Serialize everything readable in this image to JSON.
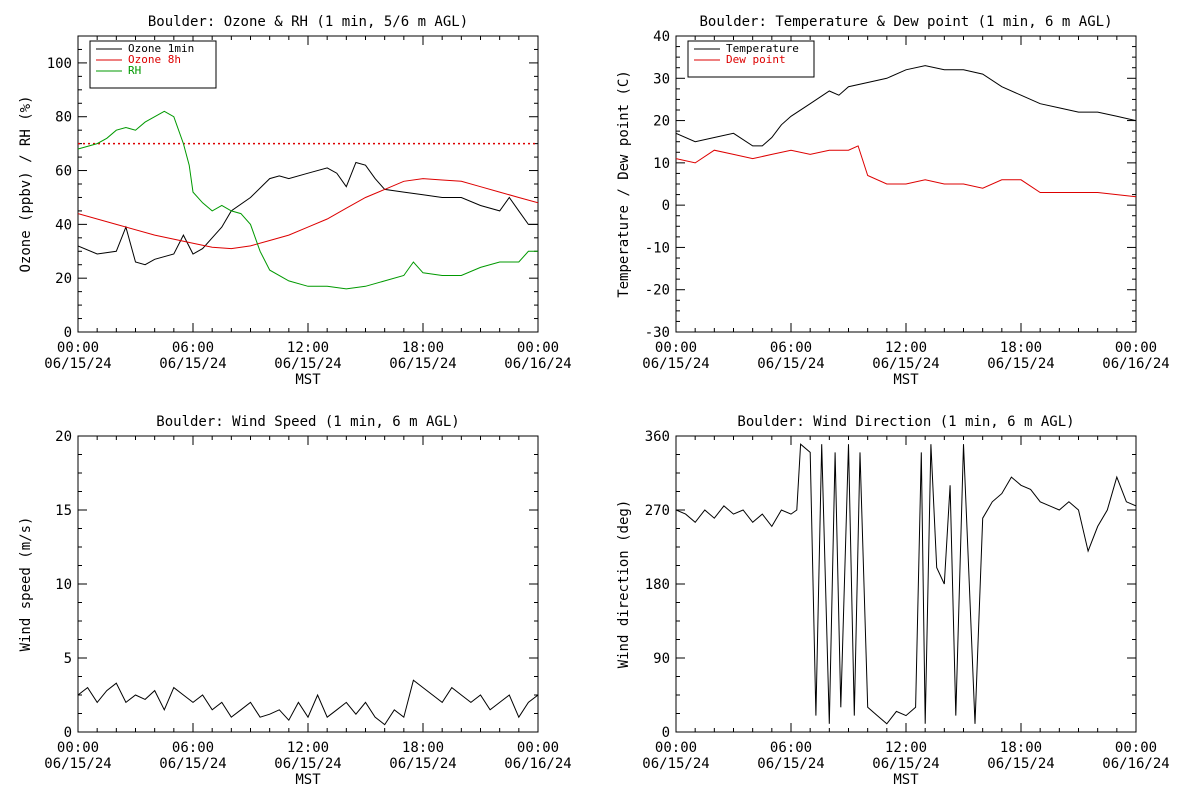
{
  "chart_data": [
    {
      "type": "line",
      "title": "Boulder: Ozone & RH (1 min, 5/6 m AGL)",
      "xlabel": "MST",
      "ylabel": "Ozone (ppbv) / RH (%)",
      "ylim": [
        0,
        110
      ],
      "xlim": [
        0,
        24
      ],
      "yticks": [
        0,
        20,
        40,
        60,
        80,
        100
      ],
      "xtick_labels": [
        [
          "00:00",
          "06/15/24"
        ],
        [
          "06:00",
          "06/15/24"
        ],
        [
          "12:00",
          "06/15/24"
        ],
        [
          "18:00",
          "06/15/24"
        ],
        [
          "00:00",
          "06/16/24"
        ]
      ],
      "legend_position": "top-left",
      "reference_line": {
        "y": 70,
        "color": "#dd0000",
        "style": "dotted"
      },
      "series": [
        {
          "name": "Ozone 1min",
          "color": "#000000",
          "x": [
            0,
            1,
            2,
            2.5,
            3,
            3.5,
            4,
            5,
            5.5,
            6,
            6.5,
            7,
            7.5,
            8,
            9,
            10,
            10.5,
            11,
            12,
            13,
            13.5,
            14,
            14.5,
            15,
            15.5,
            16,
            17,
            18,
            19,
            20,
            21,
            22,
            22.5,
            23,
            23.5,
            24
          ],
          "y": [
            32,
            29,
            30,
            39,
            26,
            25,
            27,
            29,
            36,
            29,
            31,
            35,
            39,
            45,
            50,
            57,
            58,
            57,
            59,
            61,
            59,
            54,
            63,
            62,
            57,
            53,
            52,
            51,
            50,
            50,
            47,
            45,
            50,
            45,
            40,
            40
          ]
        },
        {
          "name": "Ozone 8h",
          "color": "#dd0000",
          "x": [
            0,
            2,
            4,
            6,
            7,
            8,
            9,
            10,
            11,
            12,
            13,
            14,
            15,
            16,
            17,
            18,
            19,
            20,
            21,
            22,
            23,
            24
          ],
          "y": [
            44,
            40,
            36,
            33,
            31.5,
            31,
            32,
            34,
            36,
            39,
            42,
            46,
            50,
            53,
            56,
            57,
            56.5,
            56,
            54,
            52,
            50,
            48
          ]
        },
        {
          "name": "RH",
          "color": "#009900",
          "x": [
            0,
            1,
            1.5,
            2,
            2.5,
            3,
            3.5,
            4,
            4.5,
            5,
            5.5,
            5.8,
            6,
            6.5,
            7,
            7.5,
            8,
            8.5,
            9,
            9.5,
            10,
            11,
            12,
            13,
            14,
            15,
            16,
            17,
            17.5,
            18,
            19,
            20,
            21,
            22,
            22.5,
            23,
            23.5,
            24
          ],
          "y": [
            68,
            70,
            72,
            75,
            76,
            75,
            78,
            80,
            82,
            80,
            70,
            62,
            52,
            48,
            45,
            47,
            45,
            44,
            40,
            30,
            23,
            19,
            17,
            17,
            16,
            17,
            19,
            21,
            26,
            22,
            21,
            21,
            24,
            26,
            26,
            26,
            30,
            30
          ]
        }
      ]
    },
    {
      "type": "line",
      "title": "Boulder: Temperature & Dew point (1 min, 6 m AGL)",
      "xlabel": "MST",
      "ylabel": "Temperature / Dew point (C)",
      "ylim": [
        -30,
        40
      ],
      "xlim": [
        0,
        24
      ],
      "yticks": [
        -30,
        -20,
        -10,
        0,
        10,
        20,
        30,
        40
      ],
      "xtick_labels": [
        [
          "00:00",
          "06/15/24"
        ],
        [
          "06:00",
          "06/15/24"
        ],
        [
          "12:00",
          "06/15/24"
        ],
        [
          "18:00",
          "06/15/24"
        ],
        [
          "00:00",
          "06/16/24"
        ]
      ],
      "legend_position": "top-left",
      "series": [
        {
          "name": "Temperature",
          "color": "#000000",
          "x": [
            0,
            1,
            2,
            3,
            4,
            4.5,
            5,
            5.5,
            6,
            7,
            8,
            8.5,
            9,
            10,
            11,
            12,
            13,
            14,
            15,
            16,
            17,
            18,
            19,
            20,
            21,
            22,
            23,
            24
          ],
          "y": [
            17,
            15,
            16,
            17,
            14,
            14,
            16,
            19,
            21,
            24,
            27,
            26,
            28,
            29,
            30,
            32,
            33,
            32,
            32,
            31,
            28,
            26,
            24,
            23,
            22,
            22,
            21,
            20
          ]
        },
        {
          "name": "Dew point",
          "color": "#dd0000",
          "x": [
            0,
            1,
            2,
            3,
            4,
            5,
            6,
            7,
            8,
            9,
            9.5,
            10,
            11,
            12,
            13,
            14,
            15,
            16,
            17,
            18,
            19,
            20,
            21,
            22,
            23,
            24
          ],
          "y": [
            11,
            10,
            13,
            12,
            11,
            12,
            13,
            12,
            13,
            13,
            14,
            7,
            5,
            5,
            6,
            5,
            5,
            4,
            6,
            6,
            3,
            3,
            3,
            3,
            2.5,
            2
          ]
        }
      ]
    },
    {
      "type": "line",
      "title": "Boulder: Wind Speed (1 min, 6 m AGL)",
      "xlabel": "MST",
      "ylabel": "Wind speed (m/s)",
      "ylim": [
        0,
        20
      ],
      "xlim": [
        0,
        24
      ],
      "yticks": [
        0,
        5,
        10,
        15,
        20
      ],
      "xtick_labels": [
        [
          "00:00",
          "06/15/24"
        ],
        [
          "06:00",
          "06/15/24"
        ],
        [
          "12:00",
          "06/15/24"
        ],
        [
          "18:00",
          "06/15/24"
        ],
        [
          "00:00",
          "06/16/24"
        ]
      ],
      "series": [
        {
          "name": "",
          "color": "#000000",
          "x": [
            0,
            0.5,
            1,
            1.5,
            2,
            2.5,
            3,
            3.5,
            4,
            4.5,
            5,
            5.5,
            6,
            6.5,
            7,
            7.5,
            8,
            8.5,
            9,
            9.5,
            10,
            10.5,
            11,
            11.5,
            12,
            12.5,
            13,
            13.5,
            14,
            14.5,
            15,
            15.5,
            16,
            16.5,
            17,
            17.5,
            18,
            18.5,
            19,
            19.5,
            20,
            20.5,
            21,
            21.5,
            22,
            22.5,
            23,
            23.5,
            24
          ],
          "y": [
            2.5,
            3,
            2,
            2.8,
            3.3,
            2,
            2.5,
            2.2,
            2.8,
            1.5,
            3,
            2.5,
            2,
            2.5,
            1.5,
            2,
            1,
            1.5,
            2,
            1,
            1.2,
            1.5,
            0.8,
            2,
            1,
            2.5,
            1,
            1.5,
            2,
            1.2,
            2,
            1,
            0.5,
            1.5,
            1,
            3.5,
            3,
            2.5,
            2,
            3,
            2.5,
            2,
            2.5,
            1.5,
            2,
            2.5,
            1,
            2,
            2.5
          ]
        }
      ]
    },
    {
      "type": "line",
      "title": "Boulder: Wind Direction (1 min, 6 m AGL)",
      "xlabel": "MST",
      "ylabel": "Wind direction (deg)",
      "ylim": [
        0,
        360
      ],
      "xlim": [
        0,
        24
      ],
      "yticks": [
        0,
        90,
        180,
        270,
        360
      ],
      "xtick_labels": [
        [
          "00:00",
          "06/15/24"
        ],
        [
          "06:00",
          "06/15/24"
        ],
        [
          "12:00",
          "06/15/24"
        ],
        [
          "18:00",
          "06/15/24"
        ],
        [
          "00:00",
          "06/16/24"
        ]
      ],
      "series": [
        {
          "name": "",
          "color": "#000000",
          "x": [
            0,
            0.5,
            1,
            1.5,
            2,
            2.5,
            3,
            3.5,
            4,
            4.5,
            5,
            5.5,
            6,
            6.3,
            6.5,
            7,
            7.3,
            7.6,
            8,
            8.3,
            8.6,
            9,
            9.3,
            9.6,
            10,
            10.5,
            11,
            11.5,
            12,
            12.5,
            12.8,
            13,
            13.3,
            13.6,
            14,
            14.3,
            14.6,
            15,
            15.3,
            15.6,
            16,
            16.5,
            17,
            17.5,
            18,
            18.5,
            19,
            19.5,
            20,
            20.5,
            21,
            21.5,
            22,
            22.5,
            23,
            23.5,
            24
          ],
          "y": [
            270,
            265,
            255,
            270,
            260,
            275,
            265,
            270,
            255,
            265,
            250,
            270,
            265,
            270,
            350,
            340,
            20,
            350,
            10,
            340,
            30,
            350,
            20,
            340,
            30,
            20,
            10,
            25,
            20,
            30,
            340,
            10,
            350,
            200,
            180,
            300,
            20,
            350,
            180,
            10,
            260,
            280,
            290,
            310,
            300,
            295,
            280,
            275,
            270,
            280,
            270,
            220,
            250,
            270,
            310,
            280,
            275
          ]
        }
      ]
    }
  ]
}
